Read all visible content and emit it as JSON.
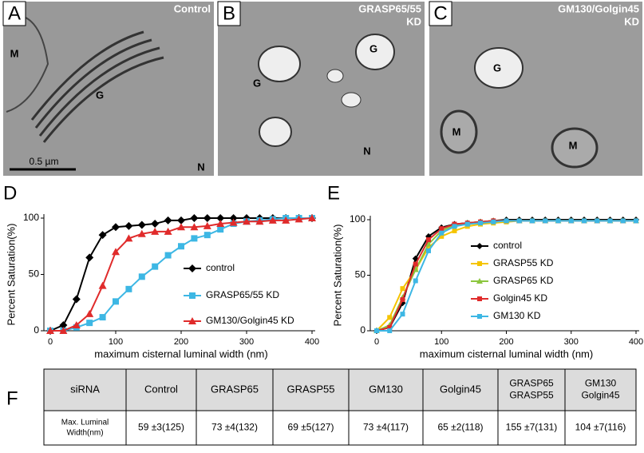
{
  "panels": [
    {
      "letter": "A",
      "caption": [
        "Control"
      ],
      "marks": [
        "M",
        "G",
        "N"
      ],
      "scale": "0.5 µm"
    },
    {
      "letter": "B",
      "caption": [
        "GRASP65/55",
        "KD"
      ],
      "marks": [
        "G",
        "G",
        "N"
      ]
    },
    {
      "letter": "C",
      "caption": [
        "GM130/Golgin45",
        "KD"
      ],
      "marks": [
        "G",
        "M",
        "M"
      ]
    }
  ],
  "chart_data": [
    {
      "type": "line",
      "letter": "D",
      "x_label": "maximum cisternal luminal width (nm)",
      "y_label": "Percent  Saturation(%)",
      "x": [
        0,
        20,
        40,
        60,
        80,
        100,
        120,
        140,
        160,
        180,
        200,
        220,
        240,
        260,
        280,
        300,
        320,
        340,
        360,
        380,
        400
      ],
      "xlim": [
        0,
        400
      ],
      "xticks": [
        0,
        100,
        200,
        300,
        400
      ],
      "ylim": [
        0,
        100
      ],
      "yticks": [
        0,
        50,
        100
      ],
      "series": [
        {
          "name": "control",
          "color": "#000000",
          "marker": "diamond",
          "values": [
            0,
            5,
            28,
            65,
            85,
            92,
            93,
            94,
            95,
            98,
            98,
            100,
            100,
            100,
            100,
            100,
            100,
            100,
            100,
            100,
            100
          ]
        },
        {
          "name": "GRASP65/55 KD",
          "color": "#3db7e4",
          "marker": "square",
          "values": [
            0,
            0,
            3,
            7,
            12,
            26,
            37,
            48,
            57,
            67,
            75,
            82,
            85,
            90,
            95,
            97,
            98,
            99,
            100,
            100,
            100
          ]
        },
        {
          "name": "GM130/Golgin45 KD",
          "color": "#e02b2b",
          "marker": "triangle",
          "values": [
            0,
            0,
            5,
            15,
            40,
            70,
            82,
            86,
            88,
            88,
            92,
            92,
            93,
            95,
            96,
            97,
            97,
            98,
            98,
            99,
            100
          ]
        }
      ]
    },
    {
      "type": "line",
      "letter": "E",
      "x_label": "maximum cisternal luminal width (nm)",
      "y_label": "Percent  Saturation(%)",
      "x": [
        0,
        20,
        40,
        60,
        80,
        100,
        120,
        140,
        160,
        180,
        200,
        220,
        240,
        260,
        280,
        300,
        320,
        340,
        360,
        380,
        400
      ],
      "xlim": [
        0,
        400
      ],
      "xticks": [
        0,
        100,
        200,
        300,
        400
      ],
      "ylim": [
        0,
        100
      ],
      "yticks": [
        0,
        50,
        100
      ],
      "series": [
        {
          "name": "control",
          "color": "#000000",
          "marker": "diamond",
          "values": [
            0,
            3,
            25,
            65,
            85,
            93,
            96,
            97,
            98,
            99,
            100,
            100,
            100,
            100,
            100,
            100,
            100,
            100,
            100,
            100,
            100
          ]
        },
        {
          "name": "GRASP55  KD",
          "color": "#f5c400",
          "marker": "square",
          "values": [
            0,
            12,
            38,
            55,
            75,
            85,
            90,
            94,
            96,
            97,
            98,
            99,
            99,
            99,
            99,
            99,
            99,
            99,
            99,
            99,
            99
          ]
        },
        {
          "name": "GRASP65  KD",
          "color": "#8cc63f",
          "marker": "triangle",
          "values": [
            0,
            5,
            30,
            55,
            78,
            90,
            95,
            97,
            98,
            99,
            99,
            99,
            99,
            99,
            99,
            99,
            99,
            99,
            99,
            99,
            99
          ]
        },
        {
          "name": "Golgin45  KD",
          "color": "#e02b2b",
          "marker": "square",
          "values": [
            0,
            3,
            28,
            60,
            82,
            92,
            96,
            97,
            98,
            99,
            99,
            99,
            99,
            99,
            99,
            99,
            99,
            99,
            99,
            99,
            99
          ]
        },
        {
          "name": "GM130  KD",
          "color": "#3db7e4",
          "marker": "square",
          "values": [
            0,
            0,
            15,
            45,
            72,
            88,
            94,
            96,
            97,
            98,
            99,
            99,
            99,
            99,
            99,
            99,
            99,
            99,
            99,
            99,
            99
          ]
        }
      ]
    }
  ],
  "table": {
    "letter": "F",
    "header": [
      [
        "siRNA"
      ],
      [
        "Control"
      ],
      [
        "GRASP65"
      ],
      [
        "GRASP55"
      ],
      [
        "GM130"
      ],
      [
        "Golgin45"
      ],
      [
        "GRASP65",
        "GRASP55"
      ],
      [
        "GM130",
        "Golgin45"
      ]
    ],
    "row": [
      [
        "Max. Luminal",
        "Width(nm)"
      ],
      [
        "59 ±3(125)"
      ],
      [
        "73 ±4(132)"
      ],
      [
        "69 ±5(127)"
      ],
      [
        "73 ±4(117)"
      ],
      [
        "65 ±2(118)"
      ],
      [
        "155 ±7(131)"
      ],
      [
        "104 ±7(116)"
      ]
    ]
  }
}
